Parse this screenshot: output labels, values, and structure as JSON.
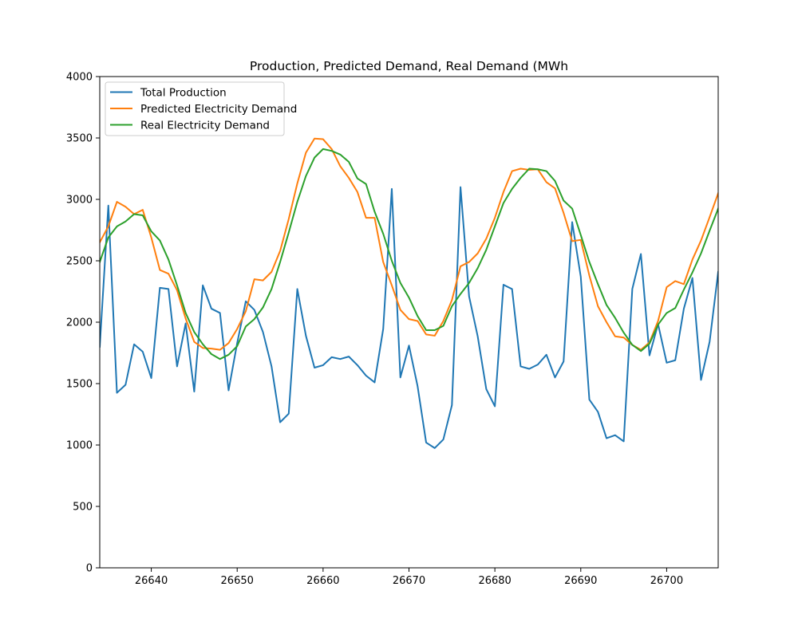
{
  "chart_data": {
    "type": "line",
    "title": "Production, Predicted Demand, Real Demand (MWh",
    "xlabel": "",
    "ylabel": "",
    "xlim": [
      26634,
      26706
    ],
    "ylim": [
      0,
      4000
    ],
    "xticks": [
      26640,
      26650,
      26660,
      26670,
      26680,
      26690,
      26700
    ],
    "yticks": [
      0,
      500,
      1000,
      1500,
      2000,
      2500,
      3000,
      3500,
      4000
    ],
    "grid": false,
    "legend_position": "upper-left",
    "x": [
      26634,
      26635,
      26636,
      26637,
      26638,
      26639,
      26640,
      26641,
      26642,
      26643,
      26644,
      26645,
      26646,
      26647,
      26648,
      26649,
      26650,
      26651,
      26652,
      26653,
      26654,
      26655,
      26656,
      26657,
      26658,
      26659,
      26660,
      26661,
      26662,
      26663,
      26664,
      26665,
      26666,
      26667,
      26668,
      26669,
      26670,
      26671,
      26672,
      26673,
      26674,
      26675,
      26676,
      26677,
      26678,
      26679,
      26680,
      26681,
      26682,
      26683,
      26684,
      26685,
      26686,
      26687,
      26688,
      26689,
      26690,
      26691,
      26692,
      26693,
      26694,
      26695,
      26696,
      26697,
      26698,
      26699,
      26700,
      26701,
      26702,
      26703,
      26704,
      26705,
      26706
    ],
    "series": [
      {
        "name": "Total Production",
        "color": "#1f77b4",
        "values": [
          1800,
          2950,
          1425,
          1490,
          1820,
          1760,
          1545,
          2280,
          2270,
          1640,
          1990,
          1435,
          2300,
          2110,
          2075,
          1445,
          1830,
          2170,
          2100,
          1920,
          1640,
          1185,
          1255,
          2270,
          1890,
          1630,
          1650,
          1715,
          1700,
          1720,
          1650,
          1565,
          1510,
          1945,
          3085,
          1550,
          1810,
          1480,
          1020,
          975,
          1045,
          1325,
          3100,
          2210,
          1885,
          1455,
          1315,
          2305,
          2270,
          1640,
          1620,
          1655,
          1735,
          1550,
          1680,
          2815,
          2370,
          1370,
          1270,
          1055,
          1080,
          1030,
          2270,
          2555,
          1730,
          1985,
          1670,
          1690,
          2110,
          2360,
          1530,
          1840,
          2410
        ]
      },
      {
        "name": "Predicted Electricity Demand",
        "color": "#ff7f0e",
        "values": [
          2650,
          2780,
          2980,
          2940,
          2880,
          2915,
          2690,
          2425,
          2395,
          2260,
          2030,
          1840,
          1790,
          1785,
          1775,
          1830,
          1945,
          2090,
          2350,
          2340,
          2410,
          2580,
          2840,
          3130,
          3380,
          3495,
          3490,
          3410,
          3270,
          3175,
          3060,
          2850,
          2850,
          2490,
          2300,
          2100,
          2025,
          2010,
          1900,
          1890,
          2010,
          2180,
          2455,
          2490,
          2560,
          2680,
          2850,
          3060,
          3230,
          3250,
          3240,
          3245,
          3140,
          3090,
          2890,
          2660,
          2670,
          2380,
          2130,
          2000,
          1885,
          1875,
          1815,
          1775,
          1835,
          2010,
          2285,
          2335,
          2310,
          2510,
          2665,
          2855,
          3050
        ]
      },
      {
        "name": "Real Electricity Demand",
        "color": "#2ca02c",
        "values": [
          2490,
          2690,
          2780,
          2820,
          2880,
          2870,
          2740,
          2665,
          2510,
          2300,
          2075,
          1920,
          1820,
          1740,
          1700,
          1735,
          1805,
          1965,
          2025,
          2120,
          2270,
          2490,
          2730,
          2980,
          3190,
          3340,
          3410,
          3395,
          3365,
          3305,
          3170,
          3125,
          2900,
          2720,
          2500,
          2320,
          2200,
          2050,
          1935,
          1935,
          1970,
          2130,
          2230,
          2320,
          2440,
          2590,
          2780,
          2970,
          3085,
          3175,
          3250,
          3245,
          3230,
          3150,
          2990,
          2925,
          2710,
          2490,
          2310,
          2140,
          2035,
          1915,
          1815,
          1765,
          1825,
          1980,
          2075,
          2115,
          2265,
          2405,
          2560,
          2745,
          2925
        ]
      }
    ]
  }
}
